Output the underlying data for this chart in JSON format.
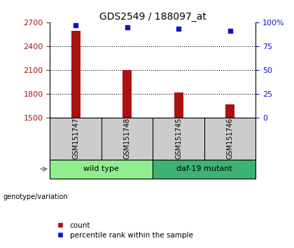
{
  "title": "GDS2549 / 188097_at",
  "samples": [
    "GSM151747",
    "GSM151748",
    "GSM151745",
    "GSM151746"
  ],
  "counts": [
    2590,
    2100,
    1820,
    1670
  ],
  "percentiles": [
    97,
    95,
    93,
    91
  ],
  "groups": [
    {
      "label": "wild type",
      "samples": [
        0,
        1
      ],
      "color": "#90ee90"
    },
    {
      "label": "daf-19 mutant",
      "samples": [
        2,
        3
      ],
      "color": "#3cb371"
    }
  ],
  "ylim_left": [
    1500,
    2700
  ],
  "ylim_right": [
    0,
    100
  ],
  "yticks_left": [
    1500,
    1800,
    2100,
    2400,
    2700
  ],
  "yticks_right": [
    0,
    25,
    50,
    75,
    100
  ],
  "bar_color": "#aa1111",
  "dot_color": "#1111cc",
  "label_count": "count",
  "label_percentile": "percentile rank within the sample",
  "bg_color": "#ffffff",
  "sample_label_bg": "#cccccc",
  "group_label": "genotype/variation",
  "bar_width": 0.18
}
